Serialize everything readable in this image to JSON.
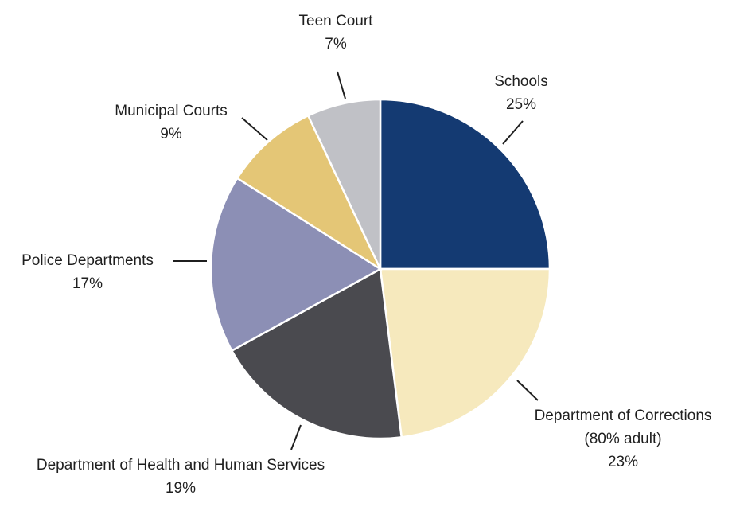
{
  "chart_data": {
    "type": "pie",
    "title": "",
    "start_angle_deg": 0,
    "direction": "clockwise",
    "slices": [
      {
        "label_lines": [
          "Schools"
        ],
        "percent_label": "25%",
        "value": 25,
        "color": "#143a72"
      },
      {
        "label_lines": [
          "Department of Corrections",
          "(80% adult)"
        ],
        "percent_label": "23%",
        "value": 23,
        "color": "#f6e9bd"
      },
      {
        "label_lines": [
          "Department of Health and Human Services"
        ],
        "percent_label": "19%",
        "value": 19,
        "color": "#4a4a4f"
      },
      {
        "label_lines": [
          "Police Departments"
        ],
        "percent_label": "17%",
        "value": 17,
        "color": "#8c8fb5"
      },
      {
        "label_lines": [
          "Municipal Courts"
        ],
        "percent_label": "9%",
        "value": 9,
        "color": "#e4c676"
      },
      {
        "label_lines": [
          "Teen Court"
        ],
        "percent_label": "7%",
        "value": 7,
        "color": "#c0c1c6"
      }
    ]
  }
}
